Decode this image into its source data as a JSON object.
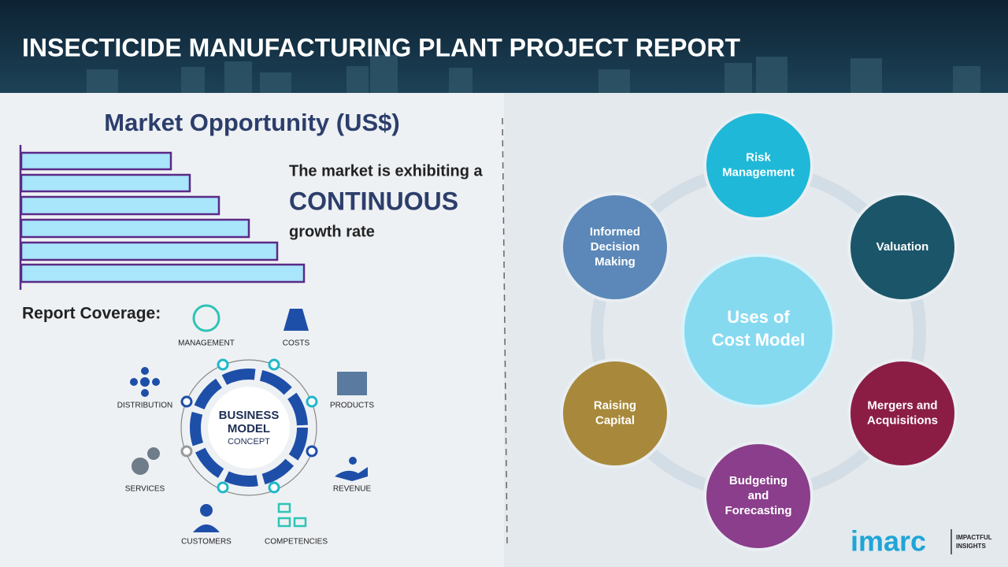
{
  "header": {
    "title": "INSECTICIDE MANUFACTURING PLANT PROJECT REPORT"
  },
  "market": {
    "title": "Market Opportunity (US$)",
    "text_lead": "The market is exhibiting a",
    "text_emphasis": "CONTINUOUS",
    "text_tail": "growth rate"
  },
  "report_coverage": {
    "title": "Report Coverage:",
    "center": [
      "BUSINESS",
      "MODEL",
      "CONCEPT"
    ],
    "items": [
      "MANAGEMENT",
      "COSTS",
      "PRODUCTS",
      "REVENUE",
      "COMPETENCIES",
      "CUSTOMERS",
      "SERVICES",
      "DISTRIBUTION"
    ]
  },
  "cost_model": {
    "center": [
      "Uses of",
      "Cost Model"
    ],
    "nodes": [
      {
        "label": [
          "Risk",
          "Management"
        ]
      },
      {
        "label": [
          "Valuation"
        ]
      },
      {
        "label": [
          "Mergers and",
          "Acquisitions"
        ]
      },
      {
        "label": [
          "Budgeting",
          "and",
          "Forecasting"
        ]
      },
      {
        "label": [
          "Raising",
          "Capital"
        ]
      },
      {
        "label": [
          "Informed",
          "Decision",
          "Making"
        ]
      }
    ]
  },
  "logo": {
    "name": "imarc",
    "tagline": [
      "IMPACTFUL",
      "INSIGHTS"
    ]
  }
}
